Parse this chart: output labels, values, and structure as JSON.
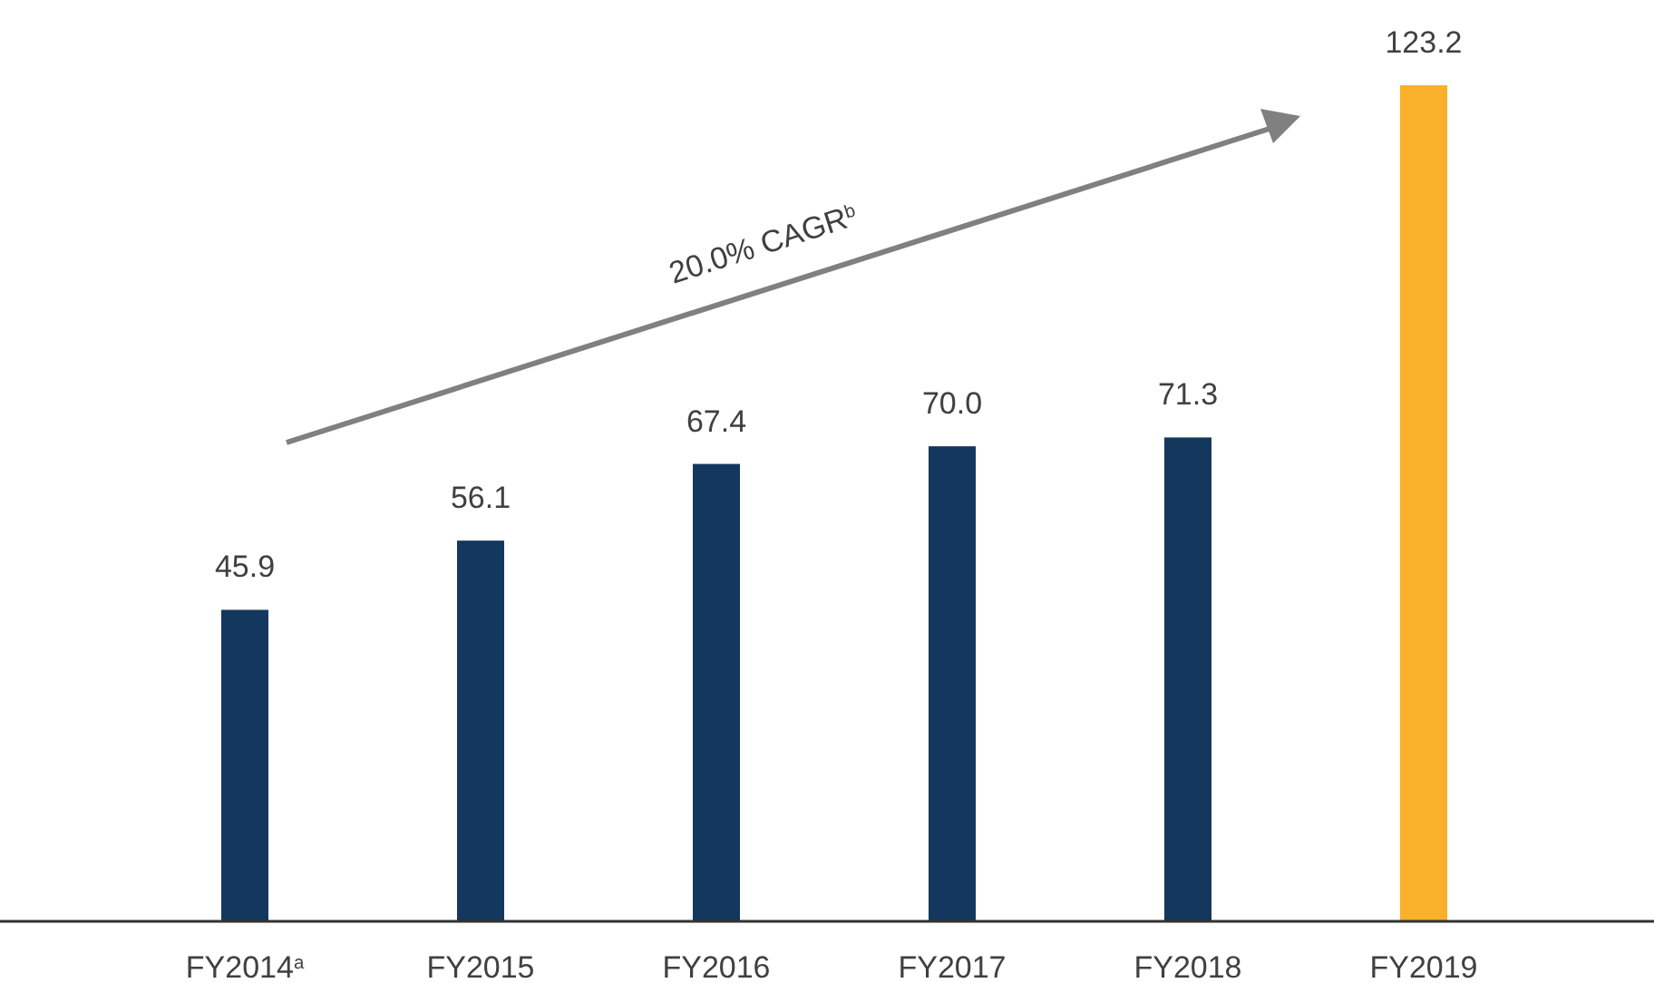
{
  "chart_data": {
    "type": "bar",
    "categories": [
      "FY2014$^{a}$",
      "FY2015",
      "FY2016",
      "FY2017",
      "FY2018",
      "FY2019"
    ],
    "values": [
      45.9,
      56.1,
      67.4,
      70.0,
      71.3,
      123.2
    ],
    "colors": [
      "#14375e",
      "#14375e",
      "#14375e",
      "#14375e",
      "#14375e",
      "#f9b02a"
    ],
    "value_labels": [
      "45.9",
      "56.1",
      "67.4",
      "70.0",
      "71.3",
      "123.2"
    ],
    "annotations": [
      "20.0% CAGR$^{b}$"
    ]
  }
}
